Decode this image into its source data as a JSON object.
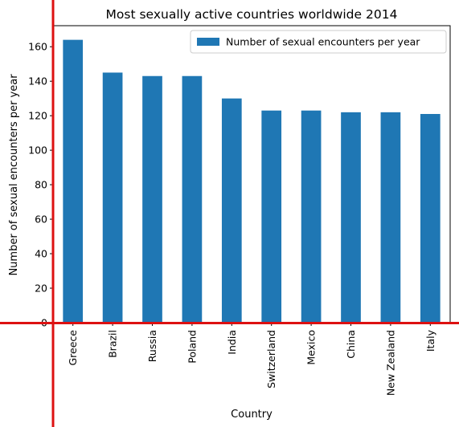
{
  "chart_data": {
    "type": "bar",
    "title": "Most sexually active countries worldwide 2014",
    "xlabel": "Country",
    "ylabel": "Number of sexual encounters per year",
    "categories": [
      "Greece",
      "Brazil",
      "Russia",
      "Poland",
      "India",
      "Switzerland",
      "Mexico",
      "China",
      "New Zealand",
      "Italy"
    ],
    "series": [
      {
        "name": "Number of sexual encounters per year",
        "values": [
          164,
          145,
          143,
          143,
          130,
          123,
          123,
          122,
          122,
          121
        ],
        "color": "#1f77b4"
      }
    ],
    "ylim": [
      0,
      172.2
    ],
    "yticks": [
      0,
      20,
      40,
      60,
      80,
      100,
      120,
      140,
      160
    ],
    "grid": false,
    "legend_position": "top-right",
    "annotation_line_color": "#dd1111"
  }
}
